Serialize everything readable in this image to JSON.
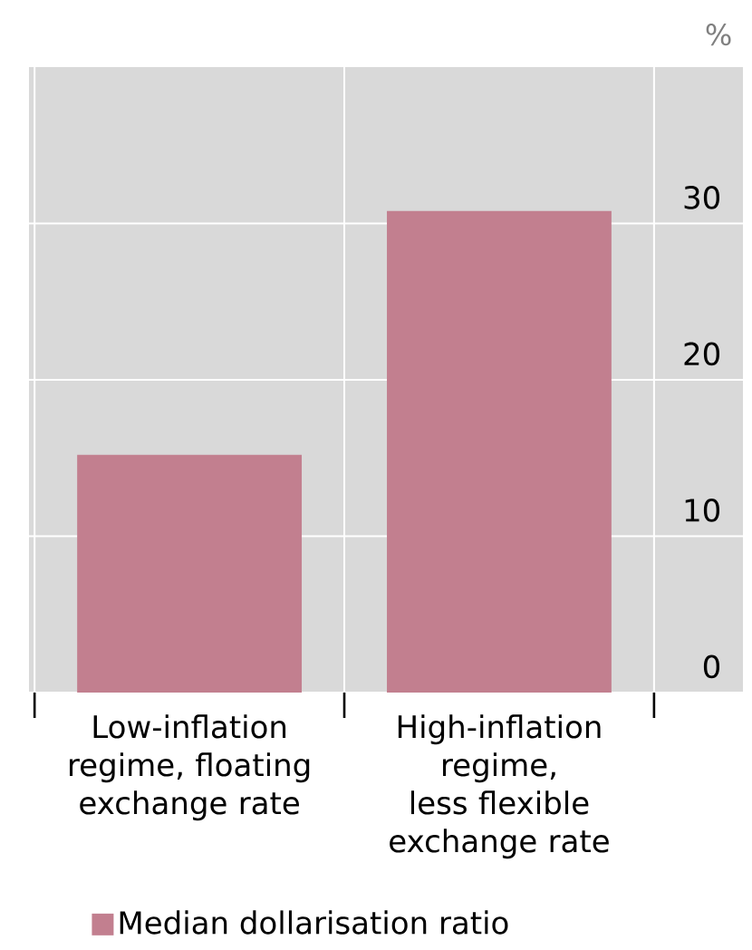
{
  "chart_data": {
    "type": "bar",
    "ylabel": "%",
    "categories": [
      "Low-inflation regime, floating exchange rate",
      "High-inflation regime, less flexible exchange rate"
    ],
    "series": [
      {
        "name": "Median dollarisation ratio",
        "color": "#c27f8f",
        "values": [
          15.2,
          30.8
        ]
      }
    ],
    "ylim": [
      0,
      40
    ],
    "yticks": [
      0,
      10,
      20,
      30
    ],
    "grid": true,
    "legend": "bottom"
  }
}
